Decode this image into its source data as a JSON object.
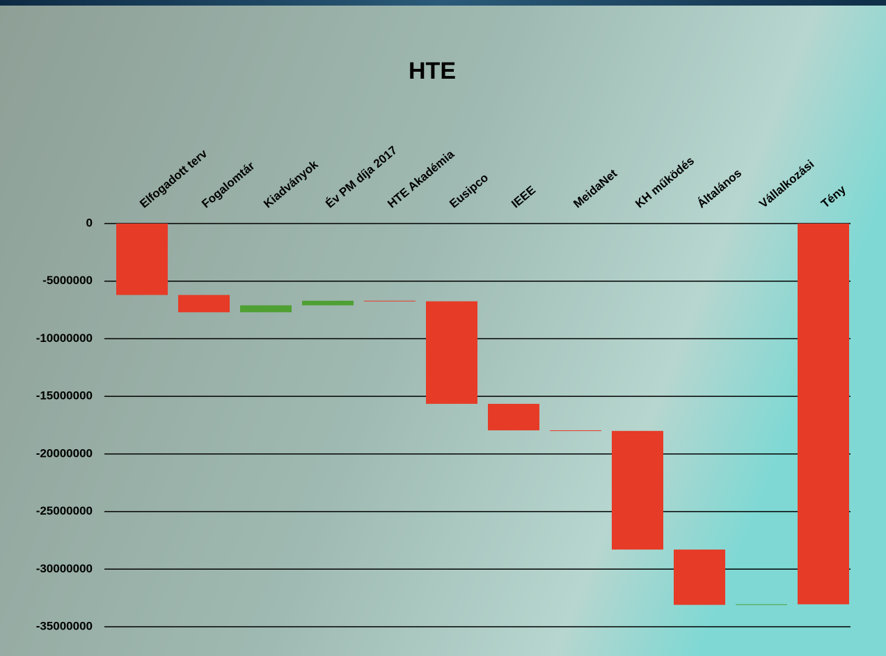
{
  "chart_data": {
    "type": "waterfall",
    "title": "HTE",
    "categories": [
      "Elfogadott terv",
      "Fogalomtár",
      "Kiadványok",
      "Év PM díja 2017",
      "HTE Akadémia",
      "Eusipco",
      "IEEE",
      "MeidaNet",
      "KH működés",
      "Általános",
      "Vállalkozási",
      "Tény"
    ],
    "values": [
      -6200000,
      -1500000,
      600000,
      400000,
      -50000,
      -8900000,
      -2300000,
      -50000,
      -10300000,
      -4800000,
      50000,
      -33050000
    ],
    "decrease_color": "#e63b27",
    "increase_color": "#4fa032",
    "ylim": [
      -35000000,
      0
    ],
    "yticks": [
      0,
      -5000000,
      -10000000,
      -15000000,
      -20000000,
      -25000000,
      -30000000,
      -35000000
    ],
    "grid": true
  }
}
